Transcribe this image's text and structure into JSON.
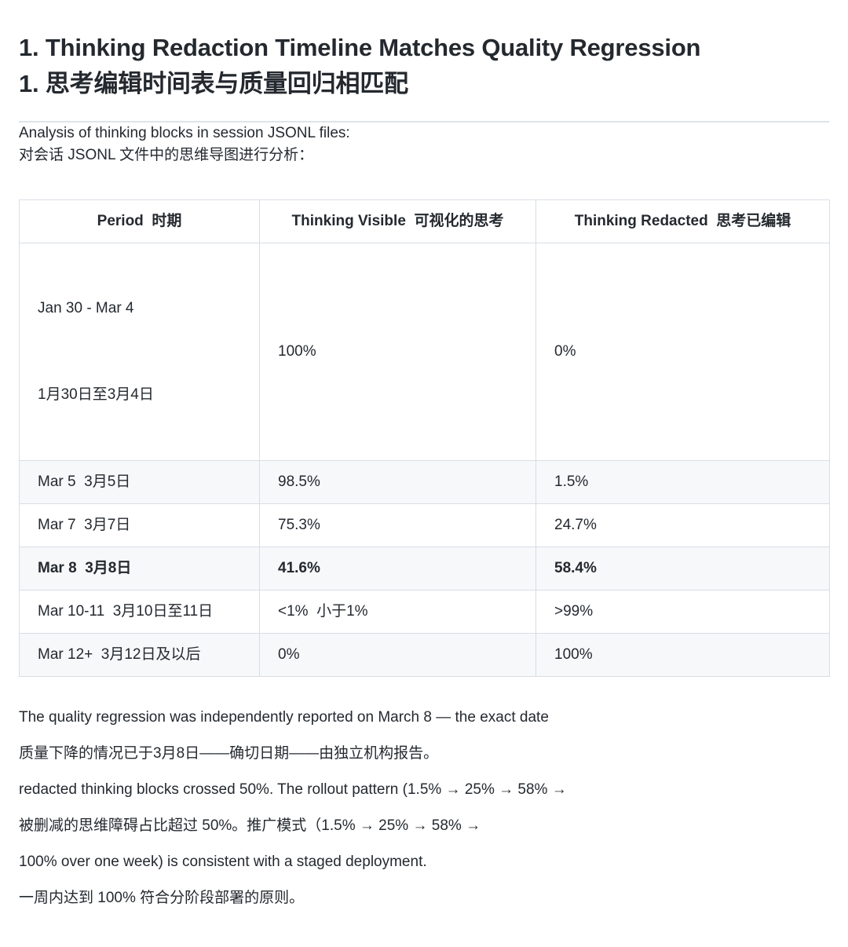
{
  "heading": {
    "en": "1. Thinking Redaction Timeline Matches Quality Regression",
    "zh": "1. 思考编辑时间表与质量回归相匹配"
  },
  "intro": {
    "en": "Analysis of thinking blocks in session JSONL files:",
    "zh": "对会话 JSONL 文件中的思维导图进行分析："
  },
  "table": {
    "headers": [
      "Period  时期",
      "Thinking Visible  可视化的思考",
      "Thinking Redacted  思考已编辑"
    ],
    "rows": [
      {
        "period_en": "Jan 30 - Mar 4",
        "period_zh": "1月30日至3月4日",
        "visible": "100%",
        "redacted": "0%"
      },
      {
        "period": "Mar 5  3月5日",
        "visible": "98.5%",
        "redacted": "1.5%"
      },
      {
        "period": "Mar 7  3月7日",
        "visible": "75.3%",
        "redacted": "24.7%"
      },
      {
        "period": "Mar 8  3月8日",
        "visible": "41.6%",
        "redacted": "58.4%",
        "bold": true
      },
      {
        "period": "Mar 10-11  3月10日至11日",
        "visible": "<1%  小于1%",
        "redacted": ">99%"
      },
      {
        "period": "Mar 12+  3月12日及以后",
        "visible": "0%",
        "redacted": "100%"
      }
    ]
  },
  "conclusion": {
    "lines": [
      "The quality regression was independently reported on March 8 — the exact date",
      "质量下降的情况已于3月8日——确切日期——由独立机构报告。",
      "redacted thinking blocks crossed 50%. The rollout pattern (1.5% → 25% → 58% →",
      "被删减的思维障碍占比超过 50%。推广模式（1.5% → 25% → 58% →",
      "100% over one week) is consistent with a staged deployment.",
      "一周内达到 100% 符合分阶段部署的原则。"
    ]
  },
  "colors": {
    "text": "#24292f",
    "table_border": "#d8dee4",
    "row_alt_background": "#f6f8fa",
    "divider": "#dfe4e9",
    "page_background": "#ffffff"
  }
}
